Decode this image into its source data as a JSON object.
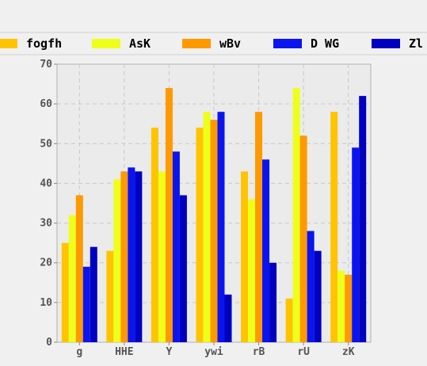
{
  "chart_data": {
    "type": "bar",
    "categories": [
      "g",
      "HHE",
      "Y",
      "ywi",
      "rB",
      "rU",
      "zK"
    ],
    "series": [
      {
        "name": "fogfh",
        "color": "#ffc400",
        "values": [
          25,
          23,
          54,
          54,
          43,
          11,
          58
        ]
      },
      {
        "name": "AsK",
        "color": "#eeff1a",
        "values": [
          32,
          41,
          43,
          58,
          36,
          64,
          18
        ]
      },
      {
        "name": "wBv",
        "color": "#ff9900",
        "values": [
          37,
          43,
          64,
          56,
          58,
          52,
          17
        ]
      },
      {
        "name": "D WG",
        "color": "#0a14f0",
        "values": [
          19,
          44,
          48,
          58,
          46,
          28,
          49
        ]
      },
      {
        "name": "Zl",
        "color": "#0000c0",
        "values": [
          24,
          43,
          37,
          12,
          20,
          23,
          62
        ]
      }
    ],
    "ylim": [
      0,
      70
    ],
    "yticks": [
      0,
      10,
      20,
      30,
      40,
      50,
      60,
      70
    ],
    "title": "",
    "xlabel": "",
    "ylabel": "",
    "grid": true,
    "legend_position": "top"
  }
}
